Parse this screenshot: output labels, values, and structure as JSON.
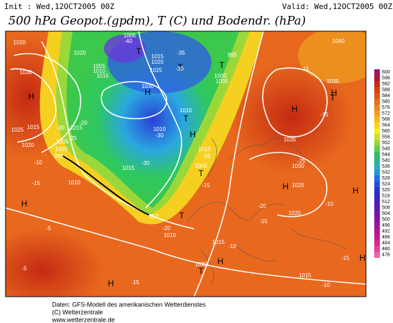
{
  "header": {
    "init": "Init : Wed,12OCT2005 00Z",
    "valid": "Valid: Wed,12OCT2005 00Z",
    "title": "500 hPa Geopot.(gpdm), T (C) und Bodendr. (hPa)"
  },
  "map_labels": [
    "1020",
    "1030",
    "1025",
    "1020",
    "H",
    "H",
    "1015",
    "1000",
    "995",
    "1010",
    "1005",
    "1015",
    "-30",
    "-25",
    "-20",
    "-15",
    "-10",
    "-5",
    "-5",
    "1005",
    "-40",
    "T",
    "1020",
    "1005",
    "1010",
    "1015",
    "1015",
    "1020",
    "1025",
    "1030",
    "H",
    "T",
    "995",
    "T",
    "1000",
    "1005",
    "-35",
    "-30",
    "1010",
    "T",
    "1010",
    "-30",
    "1015",
    "-30",
    "1010",
    "-25",
    "H",
    "1005",
    "T",
    "-15",
    "552",
    "1010",
    "-20",
    "T",
    "1015",
    "H",
    "-10",
    "1020",
    "T",
    "-15",
    "H",
    "1035",
    "H",
    "1040",
    "-15",
    "1035",
    "H",
    "1030",
    "1025",
    "H",
    "-20",
    "1020",
    "-15",
    "1015",
    "H",
    "H",
    "-10",
    "-15",
    "-10",
    "T",
    "-15",
    "-25"
  ],
  "colorbar": {
    "ticks": [
      600,
      596,
      592,
      588,
      584,
      580,
      576,
      572,
      568,
      564,
      560,
      556,
      552,
      548,
      544,
      540,
      536,
      532,
      528,
      524,
      520,
      516,
      512,
      508,
      504,
      500,
      496,
      492,
      488,
      484,
      480,
      476
    ]
  },
  "footer": {
    "line1": "Daten: GFS-Modell des amerikanischen Wetterdienstes",
    "line2": "(C) Wetterzentrale",
    "line3": "www.wetterzentrale.de"
  }
}
